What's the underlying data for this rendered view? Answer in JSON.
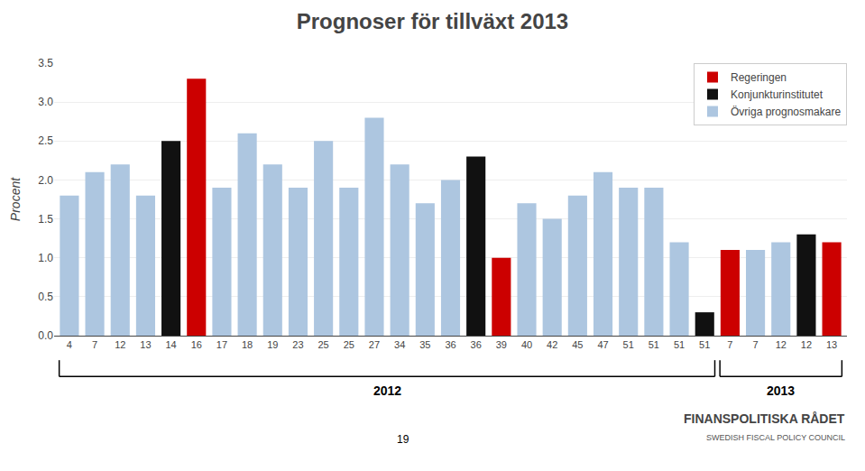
{
  "chart_data": {
    "type": "bar",
    "title": "Prognoser för tillväxt 2013",
    "ylabel": "Procent",
    "categories": [
      "4",
      "7",
      "12",
      "13",
      "14",
      "16",
      "17",
      "18",
      "19",
      "23",
      "25",
      "25",
      "27",
      "34",
      "35",
      "36",
      "36",
      "39",
      "40",
      "42",
      "45",
      "47",
      "51",
      "51",
      "51",
      "51",
      "7",
      "7",
      "12",
      "12",
      "13"
    ],
    "series": [
      {
        "name": "Regeringen",
        "color": "#cc0000",
        "values": [
          null,
          null,
          null,
          null,
          null,
          3.3,
          null,
          null,
          null,
          null,
          null,
          null,
          null,
          null,
          null,
          null,
          null,
          1.0,
          null,
          null,
          null,
          null,
          null,
          null,
          null,
          null,
          1.1,
          null,
          null,
          null,
          1.2
        ]
      },
      {
        "name": "Konjunkturinstitutet",
        "color": "#111111",
        "values": [
          null,
          null,
          null,
          null,
          2.5,
          null,
          null,
          null,
          null,
          null,
          null,
          null,
          null,
          null,
          null,
          null,
          2.3,
          null,
          null,
          null,
          null,
          null,
          null,
          null,
          null,
          0.3,
          null,
          null,
          null,
          1.3,
          null
        ]
      },
      {
        "name": "Övriga prognosmakare",
        "color": "#adc6e0",
        "values": [
          1.8,
          2.1,
          2.2,
          1.8,
          null,
          null,
          1.9,
          2.6,
          2.2,
          1.9,
          2.5,
          1.9,
          2.8,
          2.2,
          1.7,
          2.0,
          null,
          null,
          1.7,
          1.5,
          1.8,
          2.1,
          1.9,
          1.9,
          1.2,
          null,
          null,
          1.1,
          1.2,
          null,
          null
        ]
      }
    ],
    "ylim": [
      0.0,
      3.5
    ],
    "yticks": [
      {
        "value": 0,
        "label": "0.0"
      },
      0.5,
      {
        "value": 1,
        "label": "1.0"
      },
      1.5,
      {
        "value": 2,
        "label": "2.0"
      },
      2.5,
      {
        "value": 3,
        "label": "3.0"
      },
      3.5
    ],
    "grid": true,
    "legend": "upper right",
    "annotations": [
      {
        "text": "2012",
        "start": 0,
        "end": 25
      },
      {
        "text": "2013",
        "start": 26,
        "end": 30
      },
      {
        "text": "19"
      },
      {
        "text": "FINANSPOLITISKA RÅDET"
      },
      {
        "text": "SWEDISH FISCAL POLICY COUNCIL"
      }
    ]
  }
}
